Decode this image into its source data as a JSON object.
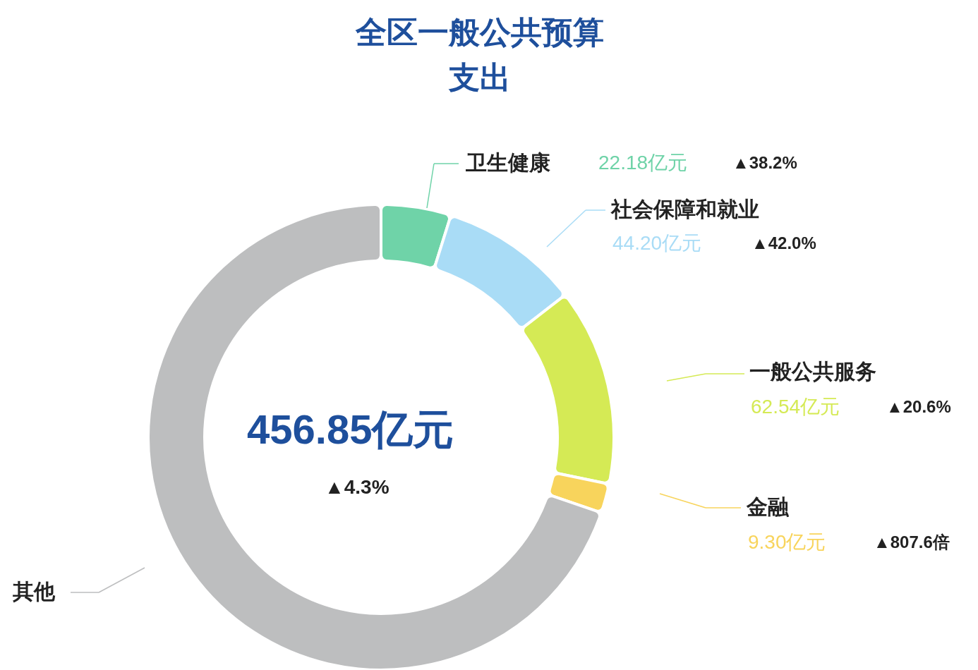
{
  "chart_data": {
    "type": "donut",
    "title": "全区一般公共预算支出",
    "categories": [
      "卫生健康",
      "社会保障和就业",
      "一般公共服务",
      "金融",
      "其他"
    ],
    "values": [
      22.18,
      44.2,
      62.54,
      9.3,
      318.63
    ],
    "colors": [
      "#6fd3a8",
      "#a9dcf6",
      "#d5ea55",
      "#f8d45c",
      "#bdbebf"
    ],
    "value_labels": [
      "22.18亿元",
      "44.20亿元",
      "62.54亿元",
      "9.30亿元",
      null
    ],
    "annotations": [
      "456.85亿元",
      "▲4.3%",
      "▲38.2%",
      "▲42.0%",
      "▲20.6%",
      "▲807.6倍"
    ],
    "legend": "right"
  }
}
